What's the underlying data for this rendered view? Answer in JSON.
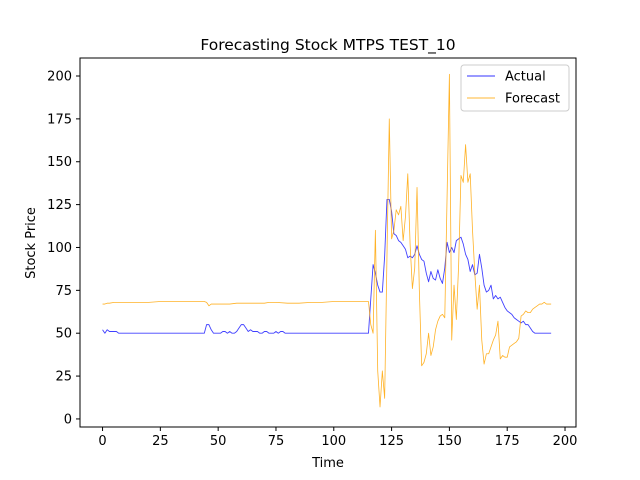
{
  "chart_data": {
    "type": "line",
    "title": "Forecasting Stock MTPS TEST_10",
    "xlabel": "Time",
    "ylabel": "Stock Price",
    "xlim": [
      -9.75,
      204.75
    ],
    "ylim": [
      -4.7,
      210.5
    ],
    "xticks": [
      0,
      25,
      50,
      75,
      100,
      125,
      150,
      175,
      200
    ],
    "yticks": [
      0,
      25,
      50,
      75,
      100,
      125,
      150,
      175,
      200
    ],
    "grid": false,
    "legend_position": "top-right",
    "series": [
      {
        "name": "Actual",
        "color": "#0000ff",
        "x": [
          0,
          1,
          2,
          3,
          4,
          5,
          6,
          7,
          8,
          9,
          10,
          15,
          20,
          25,
          30,
          35,
          40,
          44,
          45,
          46,
          47,
          48,
          49,
          50,
          51,
          52,
          53,
          54,
          55,
          56,
          57,
          58,
          59,
          60,
          61,
          62,
          63,
          64,
          65,
          66,
          67,
          68,
          69,
          70,
          71,
          72,
          73,
          74,
          75,
          76,
          77,
          78,
          79,
          80,
          85,
          90,
          95,
          100,
          105,
          110,
          115,
          116,
          117,
          118,
          119,
          120,
          121,
          122,
          123,
          124,
          125,
          126,
          127,
          128,
          129,
          130,
          131,
          132,
          133,
          134,
          135,
          136,
          137,
          138,
          139,
          140,
          141,
          142,
          143,
          144,
          145,
          146,
          147,
          148,
          149,
          150,
          151,
          152,
          153,
          154,
          155,
          156,
          157,
          158,
          159,
          160,
          161,
          162,
          163,
          164,
          165,
          166,
          167,
          168,
          169,
          170,
          171,
          172,
          173,
          174,
          175,
          176,
          177,
          178,
          179,
          180,
          181,
          182,
          183,
          184,
          185,
          186,
          187,
          188,
          190,
          192,
          194
        ],
        "values": [
          52,
          50,
          52,
          51,
          51,
          51,
          51,
          50,
          50,
          50,
          50,
          50,
          50,
          50,
          50,
          50,
          50,
          50,
          55,
          55,
          52,
          50,
          50,
          50,
          50,
          51,
          51,
          50,
          51,
          50,
          50,
          51,
          53,
          55,
          55,
          53,
          51,
          52,
          51,
          51,
          51,
          50,
          50,
          51,
          51,
          50,
          50,
          50,
          51,
          50,
          51,
          51,
          50,
          50,
          50,
          50,
          50,
          50,
          50,
          50,
          50,
          70,
          90,
          85,
          78,
          74,
          74,
          95,
          128,
          128,
          121,
          108,
          107,
          104,
          103,
          101,
          99,
          94,
          95,
          94,
          96,
          101,
          96,
          93,
          92,
          85,
          80,
          86,
          82,
          81,
          87,
          82,
          79,
          88,
          103,
          97,
          100,
          97,
          104,
          105,
          106,
          102,
          96,
          93,
          86,
          90,
          84,
          85,
          96,
          88,
          78,
          74,
          75,
          78,
          70,
          72,
          70,
          71,
          68,
          65,
          63,
          62,
          61,
          59,
          58,
          57,
          56,
          57,
          55,
          55,
          53,
          51,
          50,
          50,
          50,
          50,
          50
        ]
      },
      {
        "name": "Forecast",
        "color": "#ffa500",
        "x": [
          0,
          1,
          2,
          3,
          5,
          8,
          10,
          15,
          20,
          25,
          30,
          35,
          40,
          44,
          45,
          46,
          47,
          48,
          50,
          55,
          58,
          60,
          65,
          70,
          72,
          75,
          80,
          85,
          90,
          95,
          100,
          105,
          110,
          115,
          116,
          117,
          118,
          119,
          120,
          121,
          122,
          123,
          124,
          125,
          126,
          127,
          128,
          129,
          130,
          131,
          132,
          133,
          134,
          135,
          136,
          137,
          138,
          139,
          140,
          141,
          142,
          143,
          144,
          145,
          146,
          147,
          148,
          149,
          150,
          151,
          152,
          153,
          154,
          155,
          156,
          157,
          158,
          159,
          160,
          161,
          162,
          163,
          164,
          165,
          166,
          167,
          168,
          169,
          170,
          171,
          172,
          173,
          174,
          175,
          176,
          177,
          178,
          179,
          180,
          181,
          182,
          183,
          184,
          185,
          186,
          187,
          188,
          189,
          190,
          191,
          192,
          193,
          194
        ],
        "values": [
          67,
          67,
          67.5,
          67.5,
          68,
          68,
          68,
          68,
          68,
          68.5,
          68.5,
          68.5,
          68.5,
          68.5,
          68,
          66,
          67,
          67,
          67,
          67,
          67.5,
          67.5,
          67.5,
          67.5,
          68,
          68,
          67.5,
          67.5,
          68,
          68,
          68.5,
          68.5,
          68.5,
          68.5,
          55,
          50,
          110,
          28,
          7,
          28,
          12,
          95,
          175,
          105,
          110,
          122,
          119,
          124,
          104,
          118,
          143,
          102,
          76,
          88,
          135,
          75,
          31,
          33,
          38,
          50,
          37,
          42,
          52,
          57,
          60,
          61,
          59,
          130,
          201,
          46,
          78,
          58,
          90,
          142,
          138,
          160,
          138,
          143,
          110,
          85,
          64,
          78,
          46,
          32,
          38,
          38,
          42,
          46,
          49,
          57,
          35,
          37,
          36,
          36,
          42,
          43,
          44,
          45,
          47,
          60,
          61,
          63,
          62,
          62,
          64,
          65,
          66,
          67,
          67,
          68,
          67,
          67,
          67
        ]
      }
    ]
  }
}
